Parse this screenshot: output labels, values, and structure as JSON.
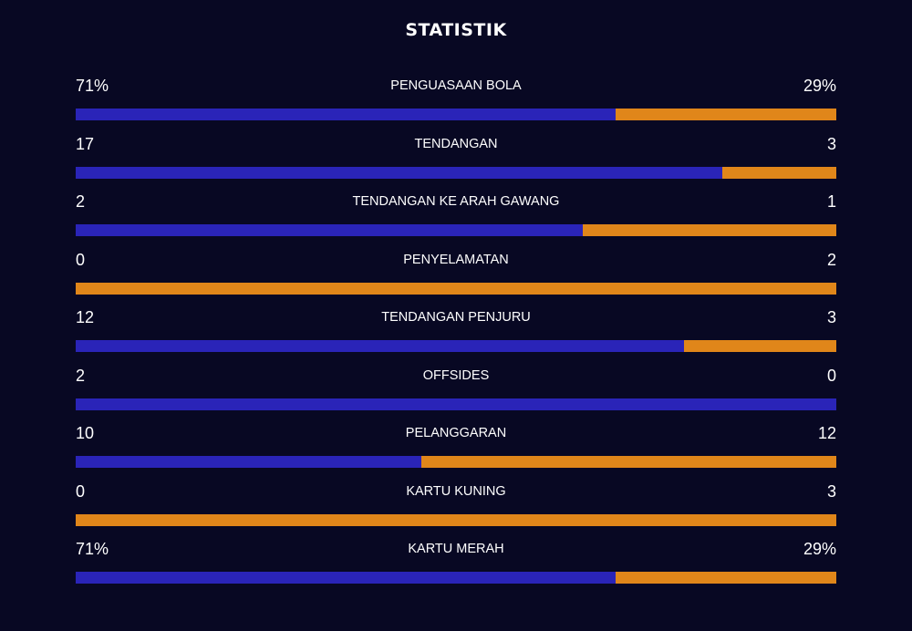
{
  "title": "STATISTIK",
  "colors": {
    "background": "#080823",
    "home": "#2a24b8",
    "away": "#e0861a"
  },
  "stats": [
    {
      "label": "PENGUASAAN BOLA",
      "home_text": "71%",
      "away_text": "29%",
      "home_share": 0.71
    },
    {
      "label": "TENDANGAN",
      "home_text": "17",
      "away_text": "3",
      "home_share": 0.85
    },
    {
      "label": "TENDANGAN KE ARAH GAWANG",
      "home_text": "2",
      "away_text": "1",
      "home_share": 0.6667
    },
    {
      "label": "PENYELAMATAN",
      "home_text": "0",
      "away_text": "2",
      "home_share": 0.0
    },
    {
      "label": "TENDANGAN PENJURU",
      "home_text": "12",
      "away_text": "3",
      "home_share": 0.8
    },
    {
      "label": "OFFSIDES",
      "home_text": "2",
      "away_text": "0",
      "home_share": 1.0
    },
    {
      "label": "PELANGGARAN",
      "home_text": "10",
      "away_text": "12",
      "home_share": 0.4545
    },
    {
      "label": "KARTU KUNING",
      "home_text": "0",
      "away_text": "3",
      "home_share": 0.0
    },
    {
      "label": "KARTU MERAH",
      "home_text": "71%",
      "away_text": "29%",
      "home_share": 0.71
    }
  ]
}
